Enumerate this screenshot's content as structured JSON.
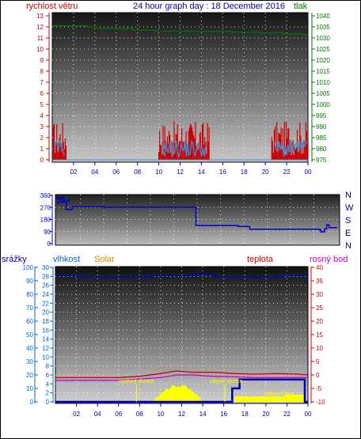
{
  "header": {
    "left_label": "rychlost větru",
    "title": "24 hour graph day : 18 December 2016",
    "right_label": "tlak"
  },
  "colors": {
    "red": "#cc0000",
    "blue": "#0000cc",
    "dark_blue": "#0000aa",
    "green": "#007700",
    "orange": "#dd8800",
    "magenta": "#cc00cc",
    "yellow": "#ffff00",
    "steel_blue": "#4488cc",
    "cyan_blue": "#0066cc"
  },
  "chart_data": [
    {
      "type": "line",
      "name": "wind-pressure",
      "x_tick_labels": [
        "02",
        "04",
        "06",
        "08",
        "10",
        "12",
        "14",
        "16",
        "18",
        "20",
        "22",
        "00"
      ],
      "left_axis": {
        "label": "rychlost větru",
        "range": [
          0,
          13
        ],
        "ticks": [
          0,
          1,
          2,
          3,
          4,
          5,
          6,
          7,
          8,
          9,
          10,
          11,
          12,
          13
        ]
      },
      "right_axis": {
        "label": "tlak",
        "range": [
          975,
          1040
        ],
        "ticks": [
          975,
          980,
          985,
          990,
          995,
          1000,
          1005,
          1010,
          1015,
          1020,
          1025,
          1030,
          1035,
          1040
        ]
      },
      "pressure_steps": [
        [
          0,
          1035.5
        ],
        [
          3.3,
          1035.0
        ],
        [
          4.2,
          1034.3
        ],
        [
          6.8,
          1033.8
        ],
        [
          7.0,
          1034.5
        ],
        [
          7.5,
          1033.6
        ],
        [
          9.7,
          1033.1
        ],
        [
          13.4,
          1033.0
        ],
        [
          16.8,
          1032.6
        ],
        [
          19.5,
          1032.2
        ],
        [
          21.0,
          1032.6
        ],
        [
          21.6,
          1031.8
        ],
        [
          23.5,
          1031.4
        ],
        [
          24.0,
          1031.4
        ]
      ],
      "gust_bursts": [
        [
          0.1,
          1.3
        ],
        [
          10.0,
          14.8
        ],
        [
          20.6,
          24.0
        ]
      ],
      "wind_avg_bursts": [
        [
          0.2,
          1.2
        ],
        [
          10.3,
          14.5
        ],
        [
          20.8,
          24.0
        ]
      ],
      "gust_max": 3.5,
      "avg_max": 1.8
    },
    {
      "type": "line",
      "name": "wind-direction",
      "left_axis": {
        "range": [
          0,
          360
        ],
        "ticks": [
          0,
          90,
          180,
          270,
          360
        ]
      },
      "right_labels": [
        "N",
        "W",
        "S",
        "E",
        "N"
      ],
      "direction_steps": [
        [
          0,
          340
        ],
        [
          0.3,
          310
        ],
        [
          0.8,
          255
        ],
        [
          1.3,
          275
        ],
        [
          4.0,
          272
        ],
        [
          11.8,
          272
        ],
        [
          11.9,
          135
        ],
        [
          15.5,
          128
        ],
        [
          16.5,
          108
        ],
        [
          22.5,
          102
        ],
        [
          22.6,
          88
        ],
        [
          22.9,
          110
        ],
        [
          23.1,
          140
        ],
        [
          23.3,
          120
        ],
        [
          24.0,
          120
        ]
      ]
    },
    {
      "type": "line",
      "name": "humidity-temperature-solar",
      "labels": {
        "rain": "srážky",
        "humidity": "vlhkost",
        "solar": "Solar",
        "temperature": "teplota",
        "dewpoint": "rosný bod"
      },
      "x_tick_labels": [
        "02",
        "04",
        "06",
        "08",
        "10",
        "12",
        "14",
        "16",
        "18",
        "20",
        "22",
        "00"
      ],
      "left_axis": {
        "range": [
          0,
          100
        ],
        "ticks": [
          0,
          10,
          20,
          30,
          40,
          50,
          60,
          70,
          80,
          90,
          100
        ]
      },
      "left_axis_2": {
        "range": [
          0,
          30
        ],
        "ticks": [
          0,
          2,
          4,
          6,
          8,
          10,
          12,
          14,
          16,
          18,
          20,
          22,
          24,
          26,
          28,
          30
        ]
      },
      "right_axis": {
        "range": [
          -10,
          40
        ],
        "ticks": [
          -10,
          -5,
          0,
          5,
          10,
          15,
          20,
          25,
          30,
          35,
          40
        ]
      },
      "humidity_steps": [
        [
          0,
          94
        ],
        [
          2.0,
          93
        ],
        [
          9.0,
          93
        ],
        [
          9.1,
          94
        ],
        [
          13.0,
          94
        ],
        [
          13.1,
          95
        ],
        [
          15.0,
          95
        ],
        [
          15.1,
          93
        ],
        [
          20.0,
          93
        ],
        [
          21.5,
          94
        ],
        [
          24.0,
          94
        ]
      ],
      "temperature_pts": [
        [
          0,
          -1
        ],
        [
          2,
          -1
        ],
        [
          4,
          -1
        ],
        [
          6,
          -1
        ],
        [
          8,
          -0.5
        ],
        [
          10,
          0.5
        ],
        [
          11.5,
          1.5
        ],
        [
          13,
          1
        ],
        [
          15,
          1
        ],
        [
          17,
          0.5
        ],
        [
          19,
          0.3
        ],
        [
          21,
          0.5
        ],
        [
          23,
          0.3
        ],
        [
          24,
          0
        ]
      ],
      "dewpoint_pts": [
        [
          0,
          -2
        ],
        [
          2,
          -2
        ],
        [
          4,
          -2
        ],
        [
          6,
          -2
        ],
        [
          8,
          -1.5
        ],
        [
          10,
          -1
        ],
        [
          11.5,
          0
        ],
        [
          13,
          0
        ],
        [
          15,
          -0.5
        ],
        [
          17,
          -0.7
        ],
        [
          19,
          -1
        ],
        [
          21,
          -1
        ],
        [
          23,
          -1
        ],
        [
          24,
          -1
        ]
      ],
      "solar_bumps": [
        [
          9.2,
          14.0,
          4.0,
          11.8
        ]
      ],
      "moon_steps": [
        [
          0,
          0
        ],
        [
          16.5,
          0
        ],
        [
          16.8,
          3
        ],
        [
          17.5,
          5
        ],
        [
          23.5,
          5
        ],
        [
          23.7,
          0
        ],
        [
          24,
          0
        ]
      ],
      "moon_fill": [
        [
          17.0,
          21.8,
          1.2
        ],
        [
          21.8,
          23.6,
          1.6
        ]
      ],
      "annotations": {
        "sunrise": "vychod slunce",
        "sunset": "západ slunce",
        "moonset": "Moon Set",
        "moonrise": "Moon Rise"
      },
      "sunrise_hour": 7.7,
      "sunset_hour": 16.1
    }
  ]
}
